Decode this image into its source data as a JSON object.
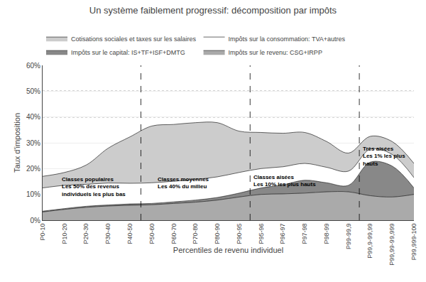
{
  "chart_data": {
    "type": "area",
    "stacked": true,
    "title": "Un système faiblement progressif: décomposition par impôts",
    "xlabel": "Percentiles de revenu individuel",
    "ylabel": "Taux d'imposition",
    "categories": [
      "P0-10",
      "P10-20",
      "P20-30",
      "P30-40",
      "P40-50",
      "P50-60",
      "P60-70",
      "P70-80",
      "P80-90",
      "P90-95",
      "P95-96",
      "P96-97",
      "P97-98",
      "P98-99",
      "P99-99,9",
      "P99,9-99,99",
      "P99,99-99,999",
      "P99,999-100"
    ],
    "series": [
      {
        "name": "Impôts sur le revenu: CSG+IRPP",
        "color": "#aaaaaa",
        "values": [
          0.032,
          0.042,
          0.05,
          0.055,
          0.058,
          0.06,
          0.065,
          0.07,
          0.078,
          0.09,
          0.1,
          0.102,
          0.105,
          0.11,
          0.11,
          0.095,
          0.09,
          0.1
        ]
      },
      {
        "name": "Impôts sur le capital: IS+TF+ISF+DMTG",
        "color": "#888888",
        "values": [
          0.003,
          0.003,
          0.004,
          0.004,
          0.005,
          0.005,
          0.006,
          0.008,
          0.01,
          0.015,
          0.025,
          0.035,
          0.05,
          0.035,
          0.025,
          0.13,
          0.12,
          0.025
        ]
      },
      {
        "name": "Impôts sur la consommation: TVA+autres",
        "color": "#ffffff",
        "values": [
          0.09,
          0.09,
          0.085,
          0.085,
          0.08,
          0.08,
          0.08,
          0.08,
          0.08,
          0.08,
          0.075,
          0.07,
          0.065,
          0.06,
          0.055,
          0.05,
          0.045,
          0.04
        ]
      },
      {
        "name": "Cotisations sociales et taxes sur les salaires",
        "color": "#cccccc",
        "values": [
          0.045,
          0.05,
          0.075,
          0.135,
          0.18,
          0.22,
          0.22,
          0.22,
          0.21,
          0.16,
          0.14,
          0.13,
          0.12,
          0.1,
          0.07,
          0.05,
          0.05,
          0.055
        ]
      }
    ],
    "ylim": [
      0.0,
      0.6
    ],
    "yticks": [
      {
        "value": 0.0,
        "label": "0%"
      },
      {
        "value": 0.1,
        "label": "10%"
      },
      {
        "value": 0.2,
        "label": "20%"
      },
      {
        "value": 0.3,
        "label": "30%"
      },
      {
        "value": 0.4,
        "label": "40%"
      },
      {
        "value": 0.5,
        "label": "50%"
      },
      {
        "value": 0.6,
        "label": "60%"
      }
    ],
    "hlines": [
      0.5,
      0.4
    ],
    "vlines": [
      4.5,
      9.5,
      14.5
    ],
    "annotations": [
      "Classes populaires\nLes 50% des revenus\nindividuels les plus bas",
      "Classes moyennes\nLes 40% du milieu",
      "Classes aisées\nLes 10% les plus hauts",
      "Très aisées\nLes 1% les plus\nhauts"
    ],
    "grid": true,
    "legend": "top"
  }
}
